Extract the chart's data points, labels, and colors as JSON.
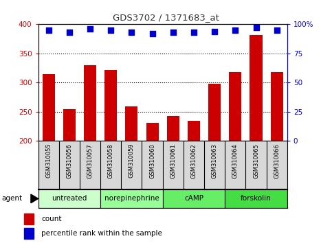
{
  "title": "GDS3702 / 1371683_at",
  "samples": [
    "GSM310055",
    "GSM310056",
    "GSM310057",
    "GSM310058",
    "GSM310059",
    "GSM310060",
    "GSM310061",
    "GSM310062",
    "GSM310063",
    "GSM310064",
    "GSM310065",
    "GSM310066"
  ],
  "counts": [
    315,
    254,
    330,
    322,
    259,
    231,
    243,
    235,
    298,
    318,
    382,
    318
  ],
  "percentiles": [
    95,
    93,
    96,
    95,
    93,
    92,
    93,
    93,
    94,
    95,
    97,
    95
  ],
  "ylim_left": [
    200,
    400
  ],
  "ylim_right": [
    0,
    100
  ],
  "yticks_left": [
    200,
    250,
    300,
    350,
    400
  ],
  "yticks_right": [
    0,
    25,
    50,
    75,
    100
  ],
  "yticklabels_right": [
    "0",
    "25",
    "50",
    "75",
    "100%"
  ],
  "bar_color": "#cc0000",
  "dot_color": "#0000cc",
  "bar_bottom": 200,
  "agent_groups": [
    {
      "label": "untreated",
      "start": 0,
      "end": 3,
      "color": "#ccffcc"
    },
    {
      "label": "norepinephrine",
      "start": 3,
      "end": 6,
      "color": "#99ff99"
    },
    {
      "label": "cAMP",
      "start": 6,
      "end": 9,
      "color": "#66ee66"
    },
    {
      "label": "forskolin",
      "start": 9,
      "end": 12,
      "color": "#44dd44"
    }
  ],
  "agent_label": "agent",
  "legend_count_label": "count",
  "legend_pct_label": "percentile rank within the sample",
  "title_color": "#333333",
  "sample_bg_color": "#d8d8d8",
  "fig_width": 4.83,
  "fig_height": 3.54,
  "fig_dpi": 100
}
